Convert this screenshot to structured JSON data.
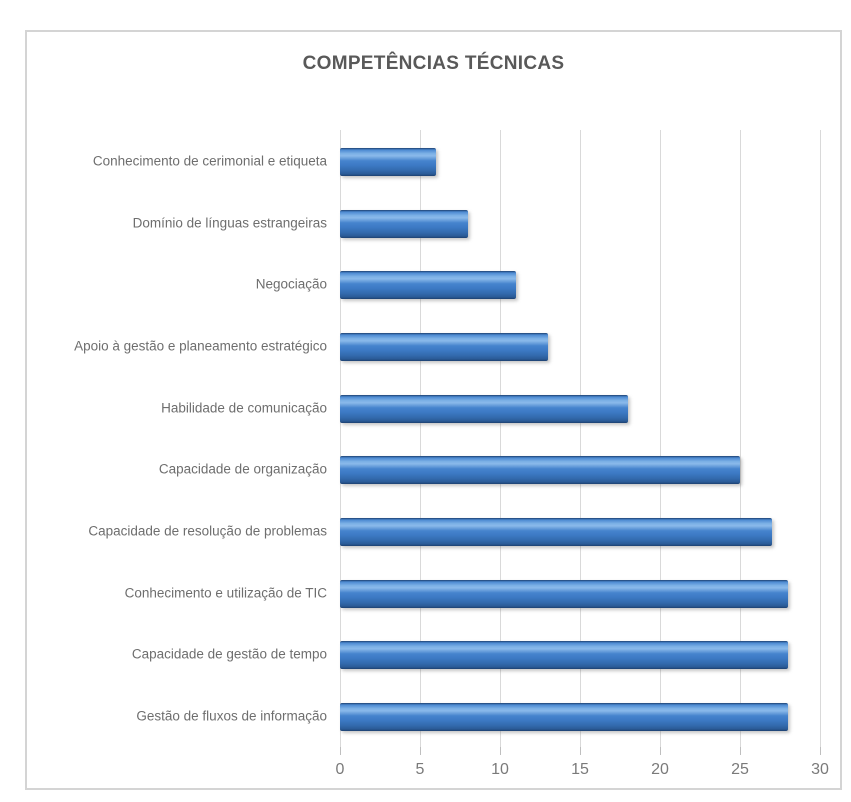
{
  "chart_data": {
    "type": "bar",
    "orientation": "horizontal",
    "title": "COMPETÊNCIAS TÉCNICAS",
    "categories": [
      "Conhecimento de cerimonial e etiqueta",
      "Domínio de línguas estrangeiras",
      "Negociação",
      "Apoio à gestão e planeamento estratégico",
      "Habilidade de comunicação",
      "Capacidade de organização",
      "Capacidade de resolução de problemas",
      "Conhecimento e utilização de TIC",
      "Capacidade de gestão de tempo",
      "Gestão de fluxos de informação"
    ],
    "values": [
      6,
      8,
      11,
      13,
      18,
      25,
      27,
      28,
      28,
      28
    ],
    "xlim": [
      0,
      30
    ],
    "x_ticks": [
      0,
      5,
      10,
      15,
      20,
      25,
      30
    ],
    "grid": "vertical-gridlines-on",
    "legend": "none",
    "colors": {
      "bar_main": "#3e7cc8",
      "bar_highlight": "#85b5e8",
      "bar_edge_dark": "#1d4070",
      "title_text": "#595959",
      "category_label_text": "#6e6e6e",
      "tick_label_text": "#7a7a7a",
      "gridline": "#d9d9d9",
      "frame_border": "#d4d4d4"
    }
  }
}
